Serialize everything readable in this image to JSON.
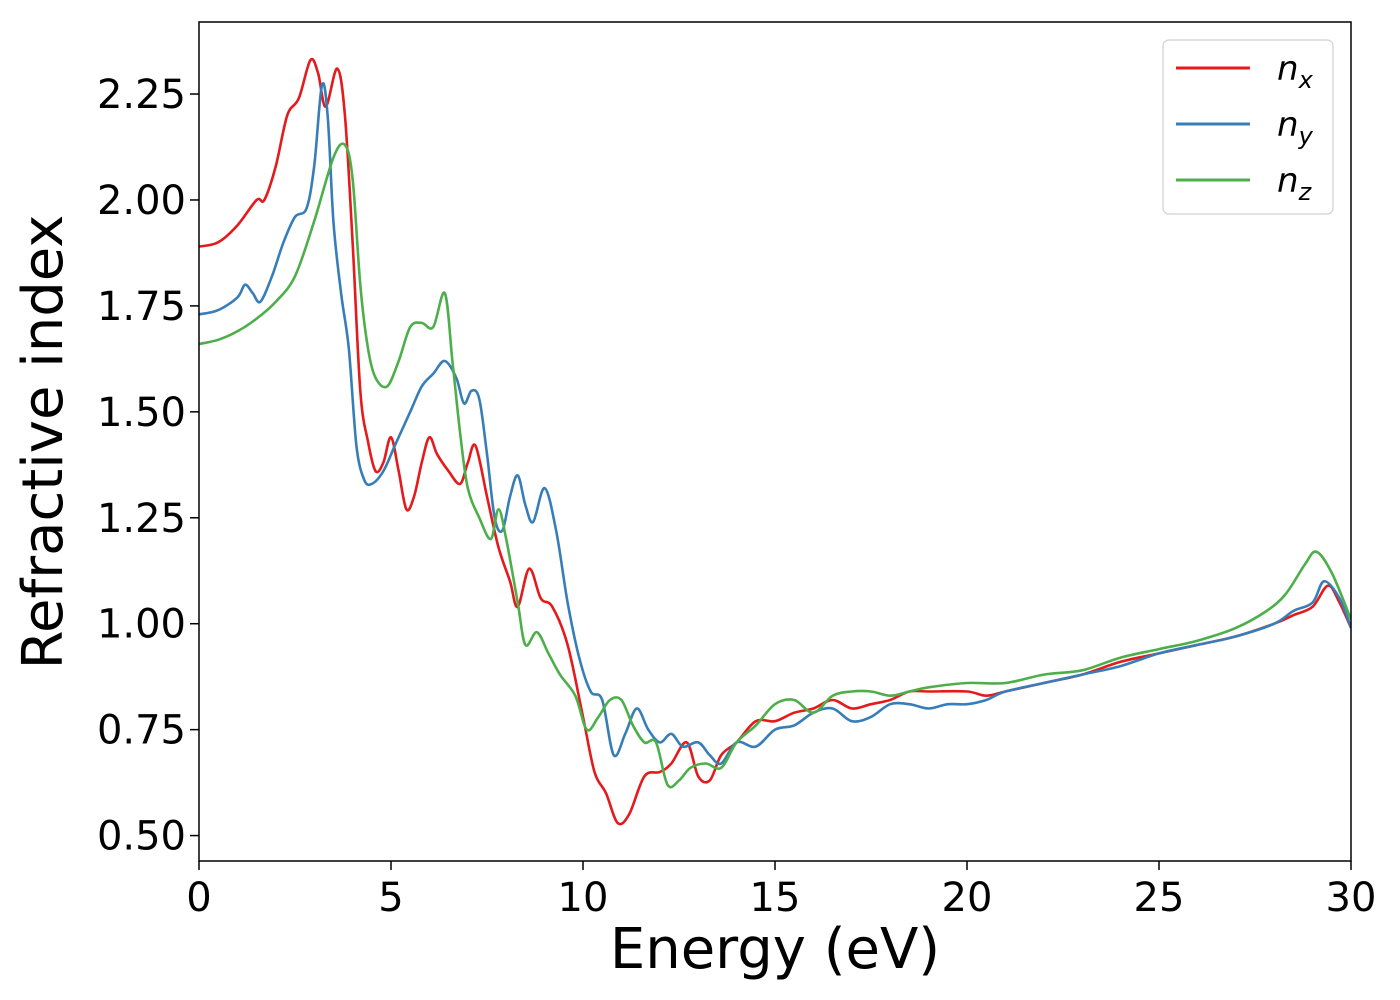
{
  "chart_data": {
    "type": "line",
    "title": "",
    "xlabel": "Energy (eV)",
    "ylabel": "Refractive index",
    "xlim": [
      0,
      30
    ],
    "ylim": [
      0.44,
      2.42
    ],
    "xticks": [
      "0",
      "5",
      "10",
      "15",
      "20",
      "25",
      "30"
    ],
    "yticks": [
      "0.50",
      "0.75",
      "1.00",
      "1.25",
      "1.50",
      "1.75",
      "2.00",
      "2.25"
    ],
    "grid": false,
    "legend_position": "top-right",
    "series": [
      {
        "name": "n",
        "subscript": "x",
        "color": "#e41a1c",
        "points": [
          [
            0,
            1.89
          ],
          [
            0.5,
            1.9
          ],
          [
            1.0,
            1.94
          ],
          [
            1.5,
            2.0
          ],
          [
            1.7,
            2.0
          ],
          [
            2.0,
            2.08
          ],
          [
            2.3,
            2.2
          ],
          [
            2.6,
            2.24
          ],
          [
            2.9,
            2.33
          ],
          [
            3.1,
            2.3
          ],
          [
            3.3,
            2.22
          ],
          [
            3.6,
            2.31
          ],
          [
            3.8,
            2.2
          ],
          [
            4.0,
            1.9
          ],
          [
            4.2,
            1.55
          ],
          [
            4.4,
            1.43
          ],
          [
            4.6,
            1.36
          ],
          [
            4.8,
            1.38
          ],
          [
            5.0,
            1.44
          ],
          [
            5.2,
            1.36
          ],
          [
            5.4,
            1.27
          ],
          [
            5.6,
            1.3
          ],
          [
            5.8,
            1.38
          ],
          [
            6.0,
            1.44
          ],
          [
            6.2,
            1.4
          ],
          [
            6.5,
            1.36
          ],
          [
            6.8,
            1.33
          ],
          [
            7.0,
            1.38
          ],
          [
            7.2,
            1.42
          ],
          [
            7.5,
            1.3
          ],
          [
            7.8,
            1.18
          ],
          [
            8.1,
            1.1
          ],
          [
            8.3,
            1.04
          ],
          [
            8.6,
            1.13
          ],
          [
            8.9,
            1.06
          ],
          [
            9.2,
            1.04
          ],
          [
            9.6,
            0.95
          ],
          [
            10.0,
            0.78
          ],
          [
            10.3,
            0.65
          ],
          [
            10.6,
            0.6
          ],
          [
            10.9,
            0.53
          ],
          [
            11.2,
            0.55
          ],
          [
            11.6,
            0.64
          ],
          [
            12.0,
            0.65
          ],
          [
            12.3,
            0.67
          ],
          [
            12.7,
            0.72
          ],
          [
            13.0,
            0.64
          ],
          [
            13.3,
            0.63
          ],
          [
            13.6,
            0.69
          ],
          [
            14.0,
            0.72
          ],
          [
            14.5,
            0.77
          ],
          [
            15.0,
            0.77
          ],
          [
            15.5,
            0.79
          ],
          [
            16.0,
            0.8
          ],
          [
            16.5,
            0.82
          ],
          [
            17.0,
            0.8
          ],
          [
            17.5,
            0.81
          ],
          [
            18.0,
            0.82
          ],
          [
            18.5,
            0.84
          ],
          [
            19.0,
            0.84
          ],
          [
            20.0,
            0.84
          ],
          [
            20.5,
            0.83
          ],
          [
            21.0,
            0.84
          ],
          [
            22.0,
            0.86
          ],
          [
            23.0,
            0.88
          ],
          [
            24.0,
            0.91
          ],
          [
            25.0,
            0.93
          ],
          [
            26.0,
            0.95
          ],
          [
            27.0,
            0.97
          ],
          [
            28.0,
            1.0
          ],
          [
            28.5,
            1.02
          ],
          [
            29.0,
            1.04
          ],
          [
            29.4,
            1.09
          ],
          [
            29.7,
            1.05
          ],
          [
            30.0,
            0.99
          ]
        ]
      },
      {
        "name": "n",
        "subscript": "y",
        "color": "#377eb8",
        "points": [
          [
            0,
            1.73
          ],
          [
            0.5,
            1.74
          ],
          [
            1.0,
            1.77
          ],
          [
            1.2,
            1.8
          ],
          [
            1.4,
            1.78
          ],
          [
            1.6,
            1.76
          ],
          [
            1.9,
            1.82
          ],
          [
            2.2,
            1.9
          ],
          [
            2.5,
            1.96
          ],
          [
            2.8,
            1.98
          ],
          [
            3.0,
            2.08
          ],
          [
            3.2,
            2.27
          ],
          [
            3.35,
            2.2
          ],
          [
            3.5,
            1.95
          ],
          [
            3.7,
            1.78
          ],
          [
            3.9,
            1.65
          ],
          [
            4.1,
            1.42
          ],
          [
            4.3,
            1.34
          ],
          [
            4.5,
            1.33
          ],
          [
            4.8,
            1.36
          ],
          [
            5.1,
            1.42
          ],
          [
            5.5,
            1.5
          ],
          [
            5.8,
            1.56
          ],
          [
            6.1,
            1.59
          ],
          [
            6.4,
            1.62
          ],
          [
            6.7,
            1.58
          ],
          [
            6.9,
            1.52
          ],
          [
            7.1,
            1.55
          ],
          [
            7.3,
            1.53
          ],
          [
            7.5,
            1.4
          ],
          [
            7.7,
            1.25
          ],
          [
            7.9,
            1.22
          ],
          [
            8.1,
            1.3
          ],
          [
            8.3,
            1.35
          ],
          [
            8.5,
            1.28
          ],
          [
            8.7,
            1.24
          ],
          [
            9.0,
            1.32
          ],
          [
            9.3,
            1.22
          ],
          [
            9.6,
            1.05
          ],
          [
            9.9,
            0.92
          ],
          [
            10.2,
            0.84
          ],
          [
            10.5,
            0.82
          ],
          [
            10.8,
            0.69
          ],
          [
            11.1,
            0.74
          ],
          [
            11.4,
            0.8
          ],
          [
            11.7,
            0.75
          ],
          [
            12.0,
            0.72
          ],
          [
            12.3,
            0.74
          ],
          [
            12.6,
            0.71
          ],
          [
            13.0,
            0.72
          ],
          [
            13.3,
            0.69
          ],
          [
            13.6,
            0.67
          ],
          [
            14.0,
            0.72
          ],
          [
            14.5,
            0.71
          ],
          [
            15.0,
            0.75
          ],
          [
            15.5,
            0.76
          ],
          [
            16.0,
            0.79
          ],
          [
            16.5,
            0.8
          ],
          [
            17.0,
            0.77
          ],
          [
            17.5,
            0.78
          ],
          [
            18.0,
            0.81
          ],
          [
            18.5,
            0.81
          ],
          [
            19.0,
            0.8
          ],
          [
            19.5,
            0.81
          ],
          [
            20.0,
            0.81
          ],
          [
            20.5,
            0.82
          ],
          [
            21.0,
            0.84
          ],
          [
            22.0,
            0.86
          ],
          [
            23.0,
            0.88
          ],
          [
            24.0,
            0.9
          ],
          [
            25.0,
            0.93
          ],
          [
            26.0,
            0.95
          ],
          [
            27.0,
            0.97
          ],
          [
            28.0,
            1.0
          ],
          [
            28.5,
            1.03
          ],
          [
            29.0,
            1.05
          ],
          [
            29.3,
            1.1
          ],
          [
            29.7,
            1.06
          ],
          [
            30.0,
            0.99
          ]
        ]
      },
      {
        "name": "n",
        "subscript": "z",
        "color": "#4daf4a",
        "points": [
          [
            0,
            1.66
          ],
          [
            0.5,
            1.67
          ],
          [
            1.0,
            1.69
          ],
          [
            1.5,
            1.72
          ],
          [
            2.0,
            1.76
          ],
          [
            2.5,
            1.82
          ],
          [
            3.0,
            1.95
          ],
          [
            3.5,
            2.1
          ],
          [
            3.8,
            2.13
          ],
          [
            4.0,
            2.05
          ],
          [
            4.2,
            1.8
          ],
          [
            4.4,
            1.65
          ],
          [
            4.6,
            1.58
          ],
          [
            4.9,
            1.56
          ],
          [
            5.2,
            1.62
          ],
          [
            5.5,
            1.7
          ],
          [
            5.8,
            1.71
          ],
          [
            6.1,
            1.7
          ],
          [
            6.4,
            1.78
          ],
          [
            6.6,
            1.62
          ],
          [
            6.8,
            1.45
          ],
          [
            7.0,
            1.32
          ],
          [
            7.3,
            1.25
          ],
          [
            7.6,
            1.2
          ],
          [
            7.8,
            1.27
          ],
          [
            8.0,
            1.2
          ],
          [
            8.3,
            1.05
          ],
          [
            8.5,
            0.95
          ],
          [
            8.8,
            0.98
          ],
          [
            9.1,
            0.93
          ],
          [
            9.4,
            0.88
          ],
          [
            9.8,
            0.83
          ],
          [
            10.1,
            0.75
          ],
          [
            10.4,
            0.78
          ],
          [
            10.7,
            0.82
          ],
          [
            11.0,
            0.82
          ],
          [
            11.3,
            0.76
          ],
          [
            11.6,
            0.72
          ],
          [
            11.9,
            0.72
          ],
          [
            12.2,
            0.62
          ],
          [
            12.5,
            0.63
          ],
          [
            12.8,
            0.66
          ],
          [
            13.2,
            0.67
          ],
          [
            13.6,
            0.66
          ],
          [
            14.0,
            0.72
          ],
          [
            14.5,
            0.76
          ],
          [
            15.0,
            0.81
          ],
          [
            15.5,
            0.82
          ],
          [
            16.0,
            0.79
          ],
          [
            16.5,
            0.83
          ],
          [
            17.0,
            0.84
          ],
          [
            17.5,
            0.84
          ],
          [
            18.0,
            0.83
          ],
          [
            18.5,
            0.84
          ],
          [
            19.0,
            0.85
          ],
          [
            20.0,
            0.86
          ],
          [
            21.0,
            0.86
          ],
          [
            22.0,
            0.88
          ],
          [
            23.0,
            0.89
          ],
          [
            24.0,
            0.92
          ],
          [
            25.0,
            0.94
          ],
          [
            26.0,
            0.96
          ],
          [
            27.0,
            0.99
          ],
          [
            27.8,
            1.03
          ],
          [
            28.3,
            1.07
          ],
          [
            28.8,
            1.14
          ],
          [
            29.1,
            1.17
          ],
          [
            29.5,
            1.12
          ],
          [
            30.0,
            1.01
          ]
        ]
      }
    ]
  }
}
